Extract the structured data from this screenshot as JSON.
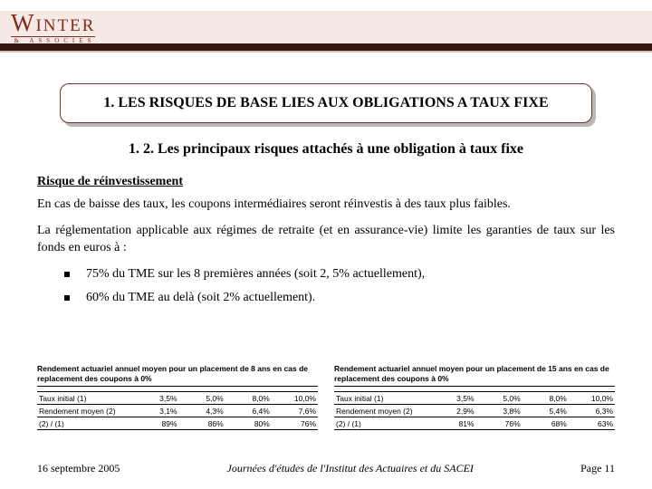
{
  "logo": {
    "brand_letter": "W",
    "brand_rest": "INTER",
    "sub": "& ASSOCIES"
  },
  "title": "1. LES RISQUES DE BASE LIES AUX OBLIGATIONS A TAUX FIXE",
  "subtitle": "1. 2. Les principaux risques attachés à une obligation à taux fixe",
  "risk_heading": "Risque de réinvestissement",
  "para1": "En cas de baisse des taux, les coupons intermédiaires seront réinvestis à des taux plus faibles.",
  "para2": "La réglementation applicable aux régimes de retraite (et en assurance-vie) limite les garanties de taux sur les fonds en euros à :",
  "bullets": [
    "75% du TME sur les 8 premières années (soit 2, 5% actuellement),",
    "60% du TME au delà (soit 2% actuellement)."
  ],
  "tables": {
    "row_labels": [
      "Taux initial (1)",
      "Rendement moyen (2)",
      "(2) / (1)"
    ],
    "left": {
      "title": "Rendement actuariel annuel moyen pour un placement de 8 ans en cas de replacement des coupons à 0%",
      "cols": [
        "3,5%",
        "5,0%",
        "8,0%",
        "10,0%"
      ],
      "data": [
        [
          "3,1%",
          "4,3%",
          "6,4%",
          "7,6%"
        ],
        [
          "89%",
          "86%",
          "80%",
          "76%"
        ]
      ]
    },
    "right": {
      "title": "Rendement actuariel annuel moyen pour un placement de 15 ans en cas de replacement des coupons à 0%",
      "cols": [
        "3,5%",
        "5,0%",
        "8,0%",
        "10,0%"
      ],
      "data": [
        [
          "2,9%",
          "3,8%",
          "5,4%",
          "6,3%"
        ],
        [
          "81%",
          "76%",
          "68%",
          "63%"
        ]
      ]
    }
  },
  "footer": {
    "left": "16 septembre 2005",
    "center": "Journées d'études de l'Institut des Actuaires et du SACEI",
    "right": "Page 11"
  },
  "colors": {
    "brand": "#7b2e1d",
    "band": "#f6e8e4",
    "bar": "#361612"
  }
}
